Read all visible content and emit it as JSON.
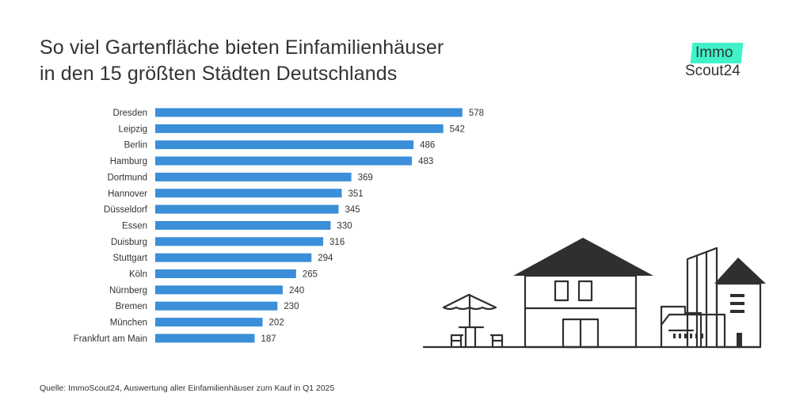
{
  "title": {
    "line1": "So viel Gartenfläche bieten Einfamilienhäuser",
    "line2": "in den 15 größten Städten Deutschlands"
  },
  "logo": {
    "top": "Immo",
    "bottom": "Scout24",
    "accent_color": "#3ff2c8"
  },
  "source": "Quelle: ImmoScout24, Auswertung aller Einfamilienhäuser zum Kauf in Q1 2025",
  "illustration": {
    "icon": "houses-garden-illustration"
  },
  "chart_data": {
    "type": "bar",
    "orientation": "horizontal",
    "categories": [
      "Dresden",
      "Leipzig",
      "Berlin",
      "Hamburg",
      "Dortmund",
      "Hannover",
      "Düsseldorf",
      "Essen",
      "Duisburg",
      "Stuttgart",
      "Köln",
      "Nürnberg",
      "Bremen",
      "München",
      "Frankfurt am Main"
    ],
    "values": [
      578,
      542,
      486,
      483,
      369,
      351,
      345,
      330,
      316,
      294,
      265,
      240,
      230,
      202,
      187
    ],
    "bar_color": "#3a8fd8",
    "grid": false,
    "data_labels": true
  }
}
